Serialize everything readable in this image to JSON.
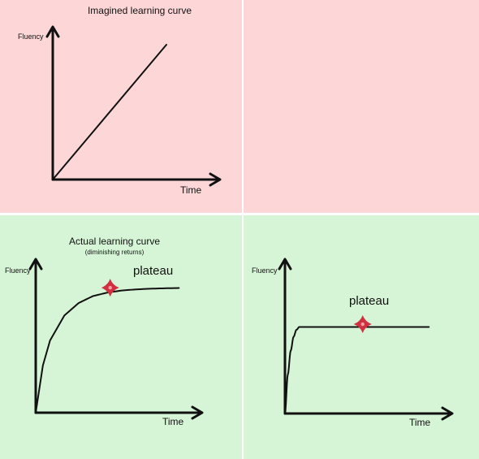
{
  "colors": {
    "top_background": "#fdd7d7",
    "bottom_background": "#d6f5d6",
    "divider": "#ffffff",
    "line": "#111111",
    "marker": "#d0303f"
  },
  "chart_data": [
    {
      "type": "line",
      "title": "Imagined learning curve",
      "subtitle": "",
      "xlabel": "Time",
      "ylabel": "Fluency",
      "annotation": "",
      "series": [
        {
          "x": [
            0,
            100
          ],
          "y": [
            0,
            100
          ]
        }
      ],
      "xlim": [
        0,
        120
      ],
      "ylim": [
        0,
        100
      ],
      "grid": false
    },
    {
      "type": "line",
      "title": "Actual learning curve",
      "subtitle": "(diminishing returns)",
      "xlabel": "Time",
      "ylabel": "Fluency",
      "annotation": "plateau",
      "marker": {
        "x": 52,
        "y": 90,
        "icon": "sparkle-icon"
      },
      "series": [
        {
          "x": [
            0,
            5,
            10,
            20,
            30,
            40,
            50,
            60,
            70,
            80,
            90,
            100
          ],
          "y": [
            0,
            34,
            52,
            70,
            79,
            84,
            86.5,
            88,
            88.8,
            89.3,
            89.6,
            89.8
          ]
        }
      ],
      "xlim": [
        0,
        110
      ],
      "ylim": [
        0,
        110
      ],
      "grid": false
    },
    {
      "type": "line",
      "title": "",
      "subtitle": "",
      "xlabel": "Time",
      "ylabel": "Fluency",
      "annotation": "plateau",
      "marker": {
        "x": 54,
        "y": 64,
        "icon": "sparkle-icon"
      },
      "series": [
        {
          "x": [
            0,
            2,
            4,
            6,
            8,
            10,
            100
          ],
          "y": [
            0,
            28,
            45,
            55,
            60,
            62,
            62
          ]
        }
      ],
      "xlim": [
        0,
        110
      ],
      "ylim": [
        0,
        110
      ],
      "grid": false
    }
  ]
}
